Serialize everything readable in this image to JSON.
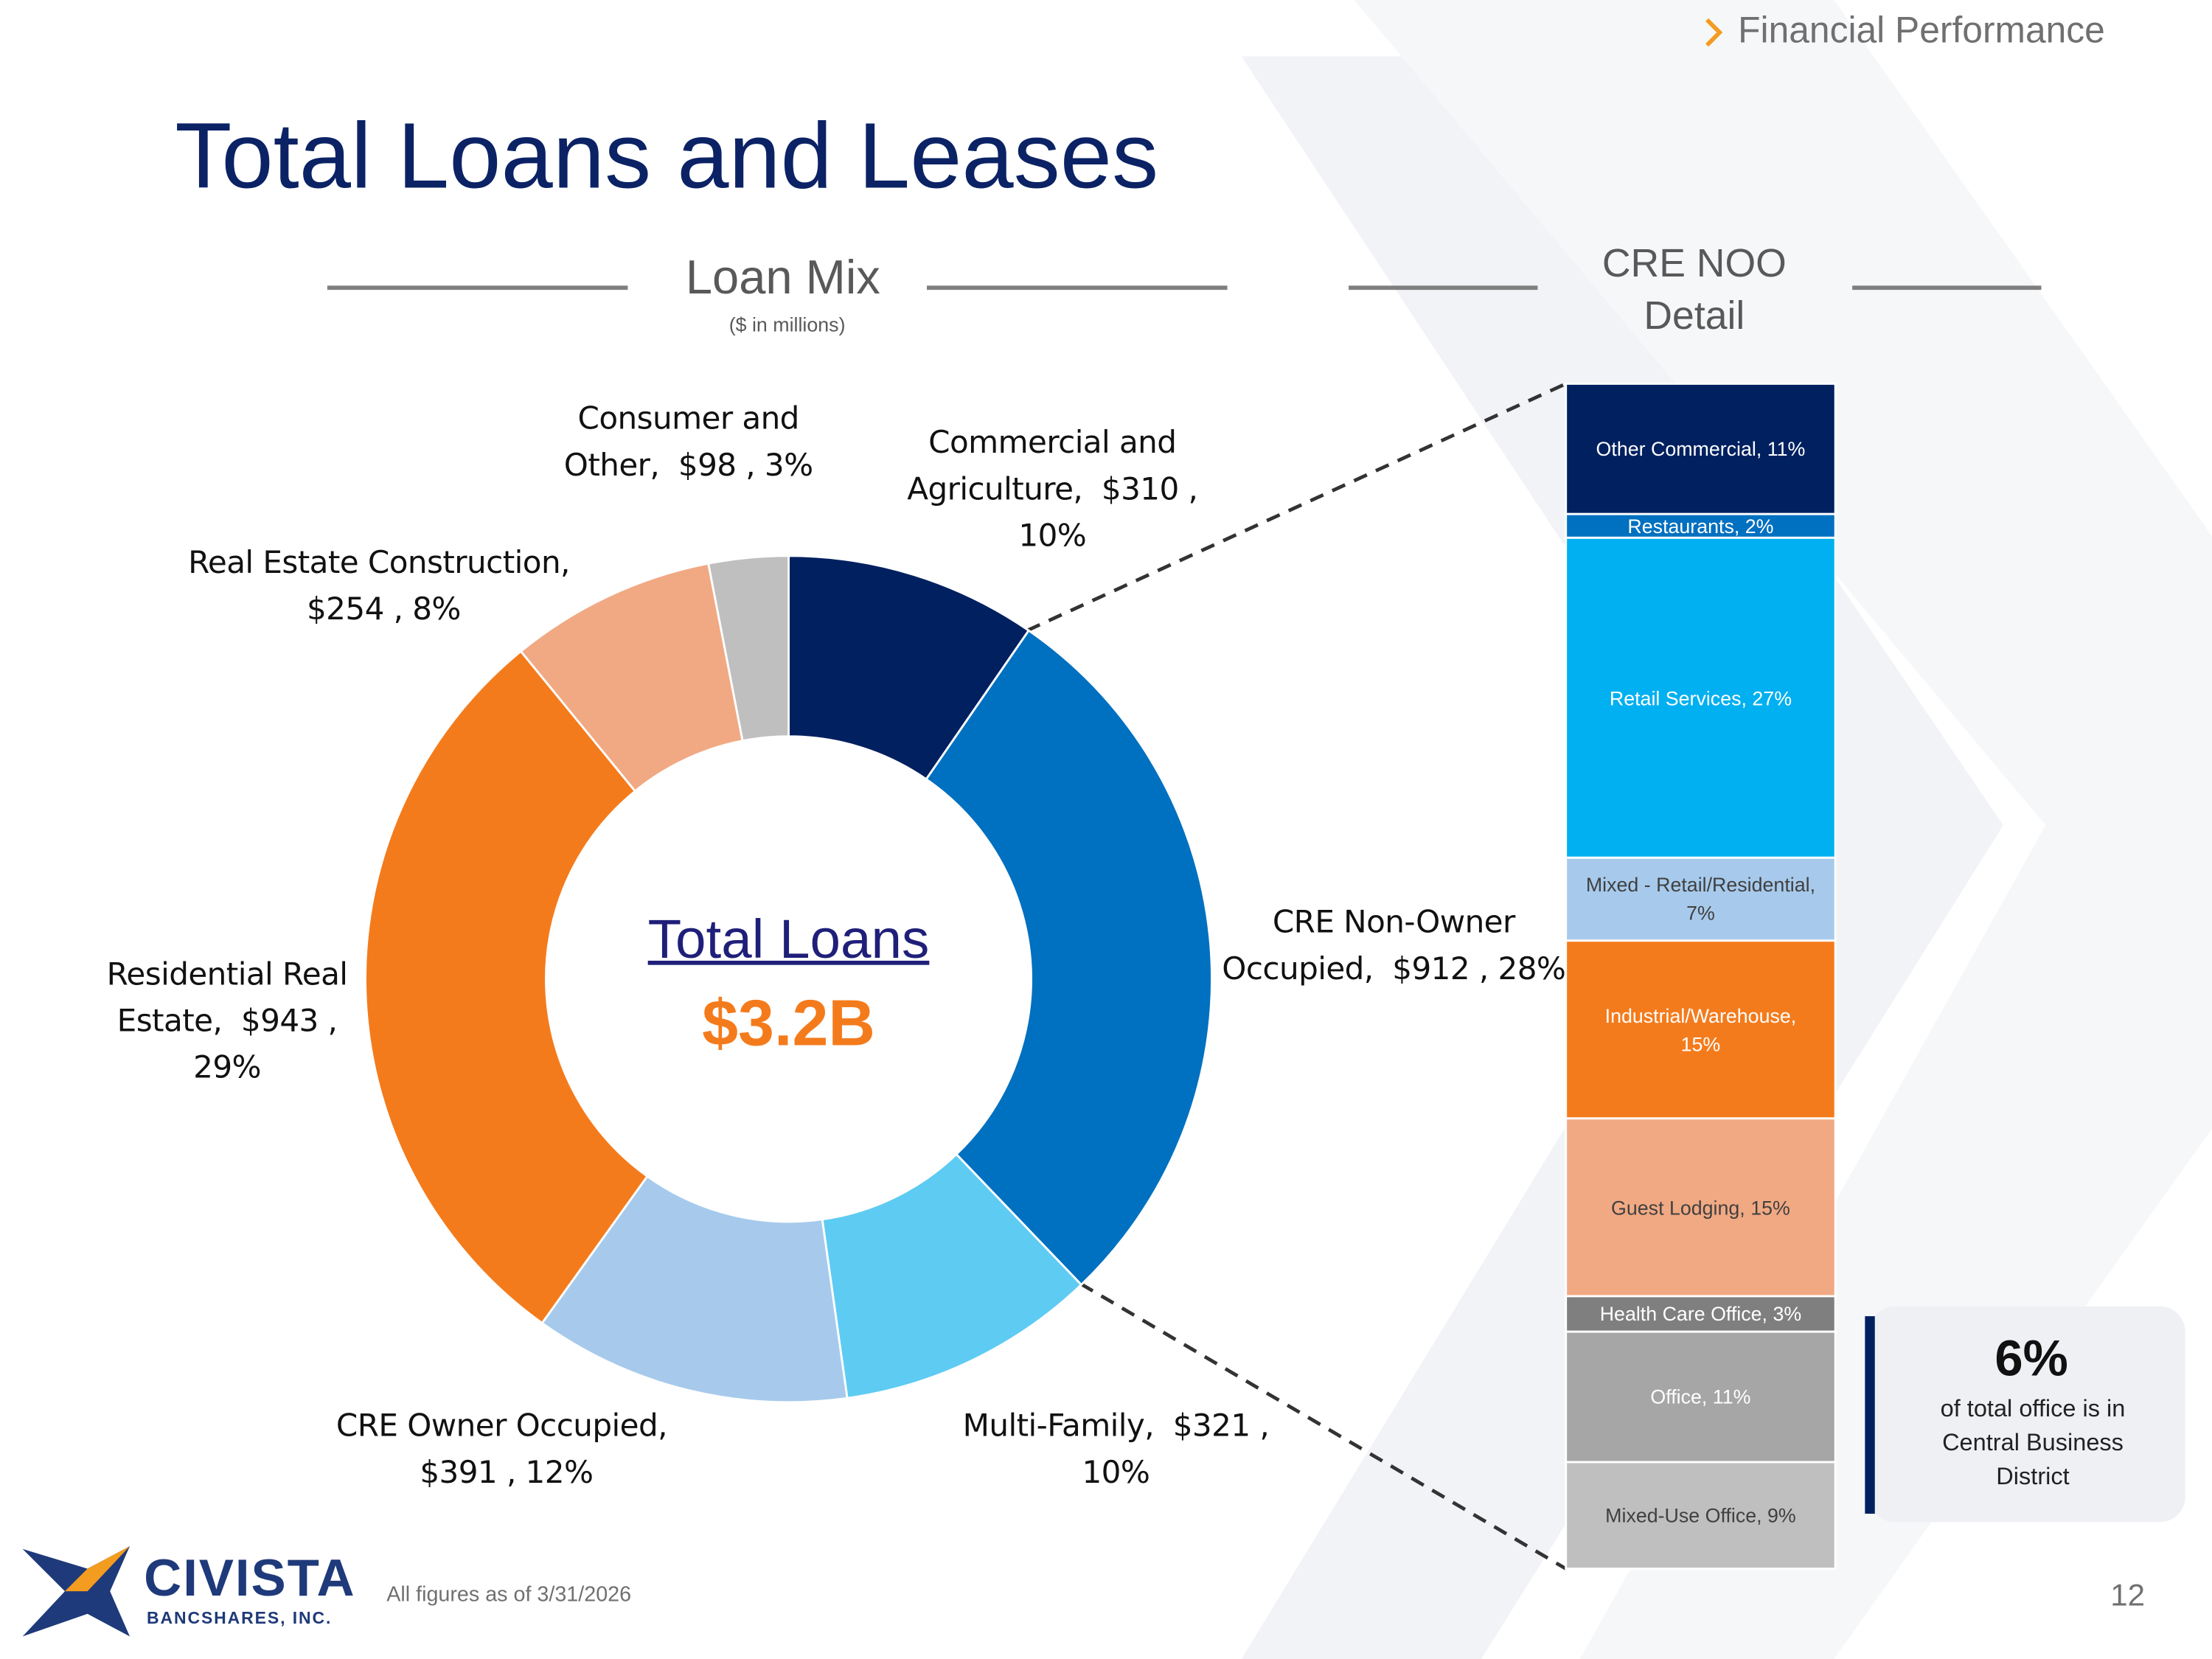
{
  "header": {
    "section": "Financial Performance",
    "title": "Total Loans and Leases"
  },
  "chart_data": [
    {
      "type": "donut",
      "title": "Loan Mix",
      "subtitle": "($ in millions)",
      "center_title": "Total Loans",
      "center_value": "$3.2B",
      "categories": [
        "Commercial and Agriculture,",
        "CRE Non-Owner Occupied,",
        "Multi-Family,",
        "CRE Owner Occupied,",
        "Residential Real Estate,",
        "Real Estate Construction,",
        "Consumer and Other,"
      ],
      "values": [
        310,
        912,
        321,
        391,
        943,
        254,
        98
      ],
      "value_labels": [
        "$310 , 10%",
        "$912 , 28%",
        "$321 , 10%",
        "$391 , 12%",
        "$943 , 29%",
        "$254 , 8%",
        "$98 , 3%"
      ],
      "colors": [
        "#002060",
        "#0070c0",
        "#5ecbf3",
        "#a7caec",
        "#f47b1c",
        "#f1a983",
        "#bfbfbf"
      ]
    },
    {
      "type": "stacked_bar",
      "title": "CRE NOO Detail",
      "categories": [
        "Other Commercial,",
        "Restaurants,",
        "Retail Services,",
        "Mixed - Retail/Residential,",
        "Industrial/Warehouse,",
        "Guest Lodging,",
        "Health Care Office,",
        "Office,",
        "Mixed-Use Office,"
      ],
      "values": [
        11,
        2,
        27,
        7,
        15,
        15,
        3,
        11,
        9
      ],
      "value_labels": [
        "11%",
        "2%",
        "27%",
        "7%",
        "15%",
        "15%",
        "3%",
        "11%",
        "9%"
      ],
      "colors": [
        "#002060",
        "#0070c0",
        "#00b0f0",
        "#a7caec",
        "#f47b1c",
        "#f1a983",
        "#7f7f7f",
        "#a6a6a6",
        "#bfbfbf"
      ]
    }
  ],
  "callout": {
    "value": "6%",
    "text": "of total office is in Central Business District"
  },
  "footer": {
    "logo_name": "CIVISTA",
    "logo_sub": "BANCSHARES, INC.",
    "note": "All figures as of 3/31/2026",
    "page_number": "12"
  }
}
